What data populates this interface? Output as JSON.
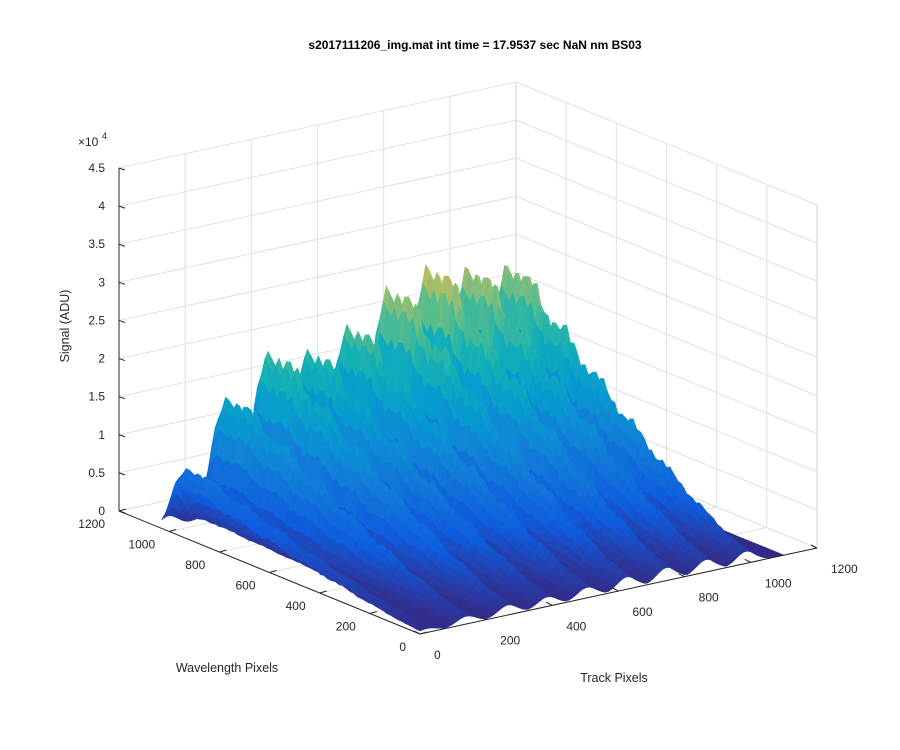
{
  "chart_data": {
    "type": "surface",
    "title": "s2017111206_img.mat int time = 17.9537 sec  NaN nm BS03",
    "xlabel": "Track Pixels",
    "ylabel": "Wavelength Pixels",
    "zlabel": "Signal (ADU)",
    "z_exponent_label": "×10",
    "z_exponent_power": "4",
    "xlim": [
      0,
      1200
    ],
    "ylim": [
      0,
      1200
    ],
    "zlim": [
      0,
      45000
    ],
    "xticks": [
      0,
      200,
      400,
      600,
      800,
      1000,
      1200
    ],
    "yticks": [
      0,
      200,
      400,
      600,
      800,
      1000,
      1200
    ],
    "zticks": [
      0,
      5000,
      10000,
      15000,
      20000,
      25000,
      30000,
      35000,
      40000,
      45000
    ],
    "xtick_labels": [
      "0",
      "200",
      "400",
      "600",
      "800",
      "1000",
      "1200"
    ],
    "ytick_labels": [
      "0",
      "200",
      "400",
      "600",
      "800",
      "1000",
      "1200"
    ],
    "ztick_labels": [
      "0",
      "0.5",
      "1",
      "1.5",
      "2",
      "2.5",
      "3",
      "3.5",
      "4",
      "4.5"
    ],
    "grid": true,
    "colormap": "parula",
    "data_extent": {
      "x": [
        0,
        1100
      ],
      "y": [
        0,
        1030
      ]
    },
    "tracks": [
      {
        "center": 20,
        "peak": 10000
      },
      {
        "center": 140,
        "peak": 19500
      },
      {
        "center": 265,
        "peak": 25000
      },
      {
        "center": 385,
        "peak": 24000
      },
      {
        "center": 505,
        "peak": 26500
      },
      {
        "center": 625,
        "peak": 31000
      },
      {
        "center": 745,
        "peak": 33000
      },
      {
        "center": 865,
        "peak": 31500
      },
      {
        "center": 985,
        "peak": 30500
      }
    ],
    "colors": {
      "low": "#352a87",
      "mid": "#21b5c6",
      "high": "#f9fb0e"
    }
  }
}
